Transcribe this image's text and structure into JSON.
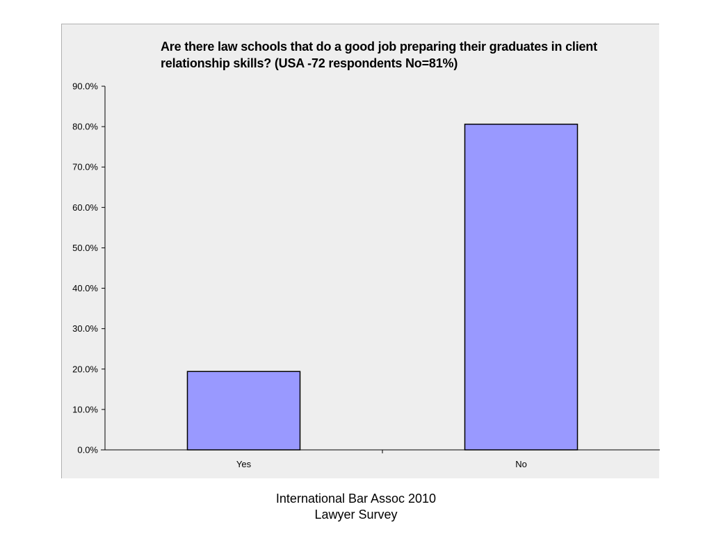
{
  "chart_data": {
    "type": "bar",
    "title": "Are there law schools that do a good job preparing their graduates in client relationship skills? (USA -72 respondents No=81%)",
    "categories": [
      "Yes",
      "No"
    ],
    "values": [
      19.4,
      80.6
    ],
    "ylim": [
      0,
      90
    ],
    "yticks": [
      "0.0%",
      "10.0%",
      "20.0%",
      "30.0%",
      "40.0%",
      "50.0%",
      "60.0%",
      "70.0%",
      "80.0%",
      "90.0%"
    ],
    "xlabel": "",
    "ylabel": "",
    "grid": false,
    "legend": "none",
    "bar_color": "#9999ff",
    "background_color": "#eeeeee"
  },
  "caption": {
    "line1": "International Bar Assoc 2010",
    "line2": "Lawyer Survey"
  }
}
